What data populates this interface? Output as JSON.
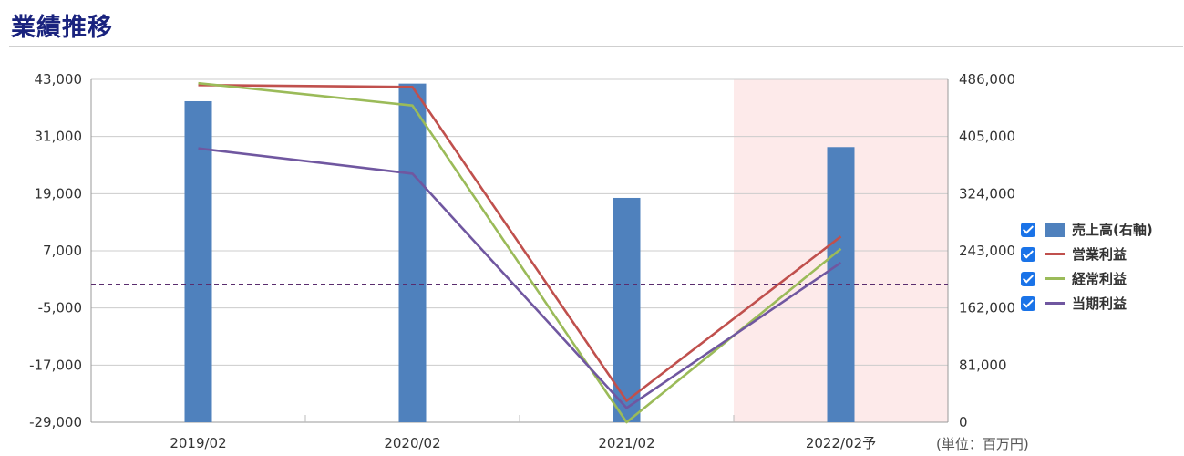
{
  "header": {
    "title": "業績推移"
  },
  "unit_label": "(単位：百万円)",
  "colors": {
    "sales": "#4f81bd",
    "operating": "#c0504d",
    "ordinary": "#9bbb59",
    "net": "#7057a0",
    "forecast_bg": "#fdeaea",
    "zero_line": "#5a2d6e"
  },
  "legend": [
    {
      "key": "sales",
      "label": "売上高(右軸)",
      "checked": true,
      "kind": "bar"
    },
    {
      "key": "operating",
      "label": "営業利益",
      "checked": true,
      "kind": "line"
    },
    {
      "key": "ordinary",
      "label": "経常利益",
      "checked": true,
      "kind": "line"
    },
    {
      "key": "net",
      "label": "当期利益",
      "checked": true,
      "kind": "line"
    }
  ],
  "chart_data": {
    "type": "bar",
    "categories": [
      "2019/02",
      "2020/02",
      "2021/02",
      "2022/02予"
    ],
    "forecast_index": 3,
    "y_left": {
      "min": -29000,
      "max": 43000,
      "ticks": [
        43000,
        31000,
        19000,
        7000,
        -5000,
        -17000,
        -29000
      ],
      "tick_labels": [
        "43,000",
        "31,000",
        "19,000",
        "7,000",
        "-5,000",
        "-17,000",
        "-29,000"
      ]
    },
    "y_right": {
      "min": 0,
      "max": 486000,
      "ticks": [
        486000,
        405000,
        324000,
        243000,
        162000,
        81000,
        0
      ],
      "tick_labels": [
        "486,000",
        "405,000",
        "324,000",
        "243,000",
        "162,000",
        "81,000",
        "0"
      ]
    },
    "series": [
      {
        "name": "売上高(右軸)",
        "type": "bar",
        "axis": "right",
        "values": [
          455000,
          480000,
          318000,
          390000
        ]
      },
      {
        "name": "営業利益",
        "type": "line",
        "axis": "left",
        "values": [
          41800,
          41400,
          -24500,
          10000
        ]
      },
      {
        "name": "経常利益",
        "type": "line",
        "axis": "left",
        "values": [
          42200,
          37500,
          -29000,
          7400
        ]
      },
      {
        "name": "当期利益",
        "type": "line",
        "axis": "left",
        "values": [
          28500,
          23200,
          -26000,
          4500
        ]
      }
    ],
    "reference_line": {
      "axis": "left",
      "value": 0,
      "style": "dashed"
    }
  }
}
